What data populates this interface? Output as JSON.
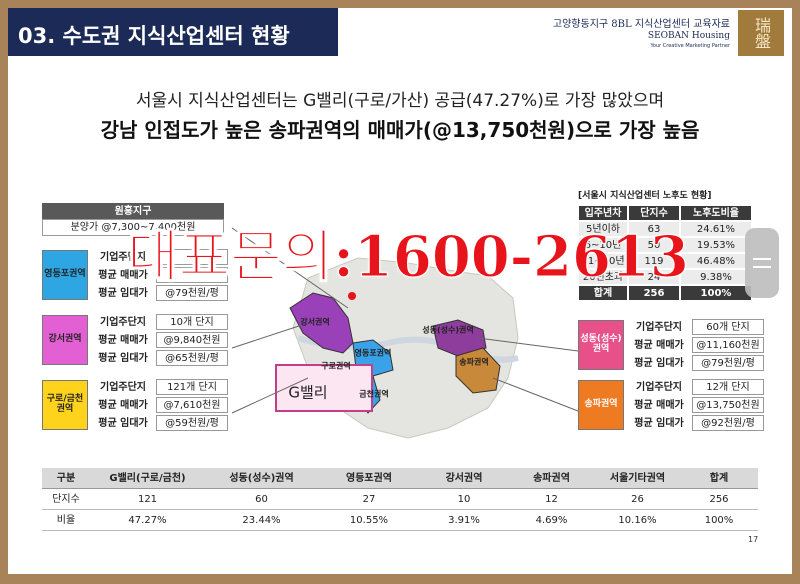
{
  "header": {
    "title": "03. 수도권 지식산업센터 현황",
    "doc_title": "고양향동지구 8BL 지식산업센터 교육자료",
    "brand": "SEOBAN Housing",
    "tagline": "Your Creative Marketing Partner",
    "logo": "瑞盤"
  },
  "headline": {
    "line1": "서울시 지식산업센터는 G밸리(구로/가산) 공급(47.27%)로 가장 많았으며",
    "line2": "강남 인접도가 높은 송파권역의 매매가(@13,750천원)으로 가장 높음"
  },
  "project": {
    "name": "원흥지구",
    "price": "분양가 @7,300~7,400천원"
  },
  "regions": [
    {
      "name": "영등포권역",
      "color": "#2ea6e3",
      "rows": [
        {
          "label": "기업주단지"
        },
        {
          "label": "평균 매매가"
        },
        {
          "label": "평균 임대가",
          "value": "@79천원/평"
        }
      ]
    },
    {
      "name": "강서권역",
      "color": "#e25fd4",
      "rows": [
        {
          "label": "기업주단지",
          "value": "10개 단지"
        },
        {
          "label": "평균 매매가",
          "value": "@9,840천원"
        },
        {
          "label": "평균 임대가",
          "value": "@65천원/평"
        }
      ]
    },
    {
      "name": "구로/금천권역",
      "color": "#ffd21c",
      "rows": [
        {
          "label": "기업주단지",
          "value": "121개 단지"
        },
        {
          "label": "평균 매매가",
          "value": "@7,610천원"
        },
        {
          "label": "평균 임대가",
          "value": "@59천원/평"
        }
      ]
    },
    {
      "name": "성동(성수)권역",
      "color": "#e8508a",
      "rows": [
        {
          "label": "기업주단지",
          "value": "60개 단지"
        },
        {
          "label": "평균 매매가",
          "value": "@11,160천원"
        },
        {
          "label": "평균 임대가",
          "value": "@79천원/평"
        }
      ]
    },
    {
      "name": "송파권역",
      "color": "#ee7a22",
      "rows": [
        {
          "label": "기업주단지",
          "value": "12개 단지"
        },
        {
          "label": "평균 매매가",
          "value": "@13,750천원"
        },
        {
          "label": "평균 임대가",
          "value": "@92천원/평"
        }
      ]
    }
  ],
  "map_labels": [
    "강서권역",
    "성동(성수)권역",
    "영등포권역",
    "구로권역",
    "금천권역",
    "송파권역",
    "G밸리"
  ],
  "aging_table": {
    "title": "[서울시 지식산업센터 노후도 현황]",
    "header": [
      "입주년차",
      "단지수",
      "노후도비율"
    ],
    "rows": [
      [
        "5년이하",
        63,
        "24.61%"
      ],
      [
        "6~10년",
        50,
        "19.53%"
      ],
      [
        "11~20년",
        119,
        "46.48%"
      ],
      [
        "20년초과",
        24,
        "9.38%"
      ],
      [
        "합계",
        256,
        "100%"
      ]
    ]
  },
  "summary_table": {
    "header": [
      "구분",
      "G밸리(구로/금천)",
      "성동(성수)권역",
      "영등포권역",
      "강서권역",
      "송파권역",
      "서울기타권역",
      "합계"
    ],
    "rows": [
      [
        "단지수",
        121,
        60,
        27,
        10,
        12,
        26,
        256
      ],
      [
        "비율",
        "47.27%",
        "23.44%",
        "10.55%",
        "3.91%",
        "4.69%",
        "10.16%",
        "100%"
      ]
    ]
  },
  "watermark": "대표문의:1600-2613",
  "page_number": "17"
}
